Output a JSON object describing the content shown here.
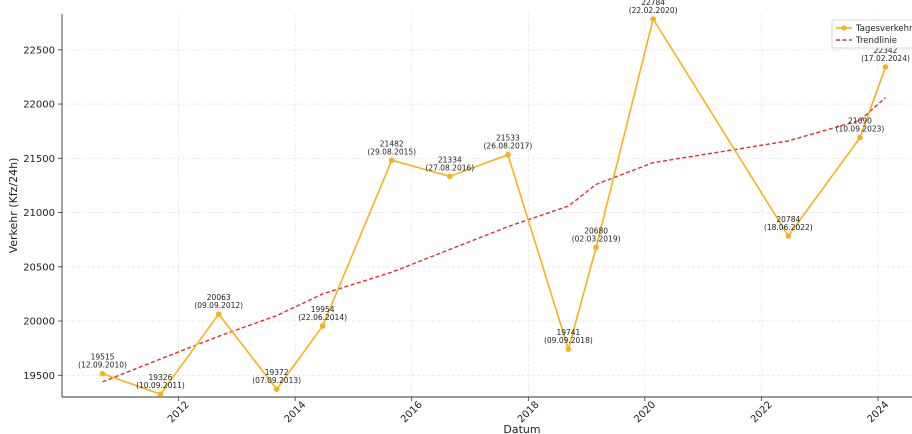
{
  "chart_data": {
    "type": "line",
    "title": "",
    "xlabel": "Datum",
    "ylabel": "Verkehr (Kfz/24h)",
    "xlim": [
      "2010-01-01",
      "2024-08-01"
    ],
    "ylim": [
      19300,
      22830
    ],
    "x_ticks": [
      "2012",
      "2014",
      "2016",
      "2018",
      "2020",
      "2022",
      "2024"
    ],
    "y_ticks": [
      "19500",
      "20000",
      "20500",
      "21000",
      "21500",
      "22000",
      "22500"
    ],
    "grid": true,
    "legend_position": "top-right",
    "series": [
      {
        "name": "Tagesverkehr",
        "color": "#f5b21b",
        "style": "solid-with-markers",
        "points": [
          {
            "date": "2010-09-12",
            "value": 19515,
            "label_value": "19515",
            "label_date": "(12.09.2010)"
          },
          {
            "date": "2011-09-10",
            "value": 19326,
            "label_value": "19326",
            "label_date": "(10.09.2011)"
          },
          {
            "date": "2012-09-09",
            "value": 20063,
            "label_value": "20063",
            "label_date": "(09.09.2012)"
          },
          {
            "date": "2013-09-07",
            "value": 19372,
            "label_value": "19372",
            "label_date": "(07.09.2013)"
          },
          {
            "date": "2014-06-22",
            "value": 19954,
            "label_value": "19954",
            "label_date": "(22.06.2014)"
          },
          {
            "date": "2015-08-29",
            "value": 21482,
            "label_value": "21482",
            "label_date": "(29.08.2015)"
          },
          {
            "date": "2016-08-27",
            "value": 21334,
            "label_value": "21334",
            "label_date": "(27.08.2016)"
          },
          {
            "date": "2017-08-26",
            "value": 21533,
            "label_value": "21533",
            "label_date": "(26.08.2017)"
          },
          {
            "date": "2018-09-09",
            "value": 19741,
            "label_value": "19741",
            "label_date": "(09.09.2018)"
          },
          {
            "date": "2019-03-02",
            "value": 20680,
            "label_value": "20680",
            "label_date": "(02.03.2019)"
          },
          {
            "date": "2020-02-22",
            "value": 22784,
            "label_value": "22784",
            "label_date": "(22.02.2020)"
          },
          {
            "date": "2022-06-18",
            "value": 20784,
            "label_value": "20784",
            "label_date": "(18.06.2022)"
          },
          {
            "date": "2023-09-10",
            "value": 21690,
            "label_value": "21690",
            "label_date": "(10.09.2023)"
          },
          {
            "date": "2024-02-17",
            "value": 22342,
            "label_value": "22342",
            "label_date": "(17.02.2024)"
          }
        ]
      },
      {
        "name": "Trendlinie",
        "color": "#e0302b",
        "style": "dashed",
        "points": [
          {
            "date": "2010-09-12",
            "value": 19440
          },
          {
            "date": "2011-09-10",
            "value": 19650
          },
          {
            "date": "2012-09-09",
            "value": 19860
          },
          {
            "date": "2013-09-07",
            "value": 20050
          },
          {
            "date": "2014-06-22",
            "value": 20250
          },
          {
            "date": "2015-08-29",
            "value": 20450
          },
          {
            "date": "2016-08-27",
            "value": 20660
          },
          {
            "date": "2017-08-26",
            "value": 20870
          },
          {
            "date": "2018-09-09",
            "value": 21060
          },
          {
            "date": "2019-03-02",
            "value": 21260
          },
          {
            "date": "2020-02-22",
            "value": 21460
          },
          {
            "date": "2022-06-18",
            "value": 21660
          },
          {
            "date": "2023-09-10",
            "value": 21850
          },
          {
            "date": "2024-02-17",
            "value": 22060
          }
        ]
      }
    ]
  }
}
